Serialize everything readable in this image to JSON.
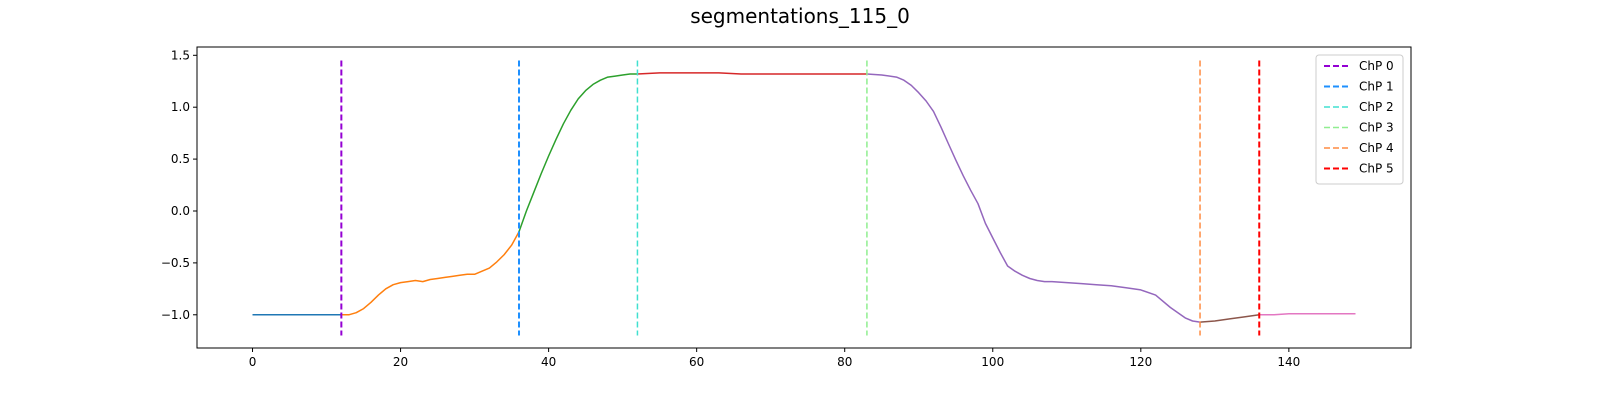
{
  "chart_data": {
    "type": "line",
    "title": "segmentations_115_0",
    "xlabel": "",
    "ylabel": "",
    "xlim": [
      -7.5,
      156.5
    ],
    "ylim": [
      -1.32,
      1.58
    ],
    "xticks": [
      0,
      20,
      40,
      60,
      80,
      100,
      120,
      140
    ],
    "yticks": [
      -1.0,
      -0.5,
      0.0,
      0.5,
      1.0,
      1.5
    ],
    "ytick_labels": [
      "−1.0",
      "−0.5",
      "0.0",
      "0.5",
      "1.0",
      "1.5"
    ],
    "grid": false,
    "legend_position": "top-right",
    "series": [
      {
        "color": "#1f77b4",
        "x": [
          0,
          2,
          4,
          6,
          8,
          10,
          12
        ],
        "y": [
          -1.0,
          -1.0,
          -1.0,
          -1.0,
          -1.0,
          -1.0,
          -1.0
        ]
      },
      {
        "color": "#ff7f0e",
        "x": [
          12,
          13,
          14,
          15,
          16,
          17,
          18,
          19,
          20,
          21,
          22,
          23,
          24,
          25,
          26,
          27,
          28,
          29,
          30,
          31,
          32,
          33,
          34,
          35,
          36
        ],
        "y": [
          -1.0,
          -1.0,
          -0.98,
          -0.94,
          -0.88,
          -0.81,
          -0.75,
          -0.71,
          -0.69,
          -0.68,
          -0.67,
          -0.68,
          -0.66,
          -0.65,
          -0.64,
          -0.63,
          -0.62,
          -0.61,
          -0.61,
          -0.58,
          -0.55,
          -0.49,
          -0.42,
          -0.33,
          -0.2
        ]
      },
      {
        "color": "#2ca02c",
        "x": [
          36,
          37,
          38,
          39,
          40,
          41,
          42,
          43,
          44,
          45,
          46,
          47,
          48,
          49,
          50,
          51,
          52
        ],
        "y": [
          -0.2,
          0.0,
          0.18,
          0.36,
          0.53,
          0.69,
          0.84,
          0.97,
          1.08,
          1.16,
          1.22,
          1.26,
          1.29,
          1.3,
          1.31,
          1.32,
          1.32
        ]
      },
      {
        "color": "#d62728",
        "x": [
          52,
          55,
          58,
          60,
          63,
          66,
          69,
          72,
          75,
          78,
          80,
          83
        ],
        "y": [
          1.32,
          1.33,
          1.33,
          1.33,
          1.33,
          1.32,
          1.32,
          1.32,
          1.32,
          1.32,
          1.32,
          1.32
        ]
      },
      {
        "color": "#9467bd",
        "x": [
          83,
          85,
          87,
          88,
          89,
          90,
          91,
          92,
          93,
          94,
          95,
          96,
          97,
          98,
          99,
          100,
          101,
          102,
          103,
          104,
          105,
          106,
          107,
          108,
          110,
          112,
          114,
          116,
          118,
          120,
          122,
          124,
          126,
          127,
          128
        ],
        "y": [
          1.32,
          1.31,
          1.29,
          1.26,
          1.21,
          1.14,
          1.06,
          0.96,
          0.81,
          0.65,
          0.49,
          0.34,
          0.2,
          0.07,
          -0.12,
          -0.26,
          -0.4,
          -0.53,
          -0.58,
          -0.62,
          -0.65,
          -0.67,
          -0.68,
          -0.68,
          -0.69,
          -0.7,
          -0.71,
          -0.72,
          -0.74,
          -0.76,
          -0.81,
          -0.93,
          -1.03,
          -1.06,
          -1.07
        ]
      },
      {
        "color": "#8c564b",
        "x": [
          128,
          130,
          132,
          134,
          136
        ],
        "y": [
          -1.07,
          -1.06,
          -1.04,
          -1.02,
          -1.0
        ]
      },
      {
        "color": "#e377c2",
        "x": [
          136,
          138,
          140,
          142,
          144,
          146,
          148,
          149
        ],
        "y": [
          -1.0,
          -1.0,
          -0.99,
          -0.99,
          -0.99,
          -0.99,
          -0.99,
          -0.99
        ]
      }
    ],
    "changepoints": [
      {
        "name": "ChP 0",
        "x": 12,
        "color": "#9400d3",
        "weight": "bold"
      },
      {
        "name": "ChP 1",
        "x": 36,
        "color": "#1e90ff",
        "weight": "bold"
      },
      {
        "name": "ChP 2",
        "x": 52,
        "color": "#40e0d0",
        "weight": "light"
      },
      {
        "name": "ChP 3",
        "x": 83,
        "color": "#90ee90",
        "weight": "light"
      },
      {
        "name": "ChP 4",
        "x": 128,
        "color": "#ff8c42",
        "weight": "light"
      },
      {
        "name": "ChP 5",
        "x": 136,
        "color": "#ff0000",
        "weight": "bold"
      }
    ],
    "changepoint_yrange": [
      -1.2,
      1.45
    ]
  }
}
